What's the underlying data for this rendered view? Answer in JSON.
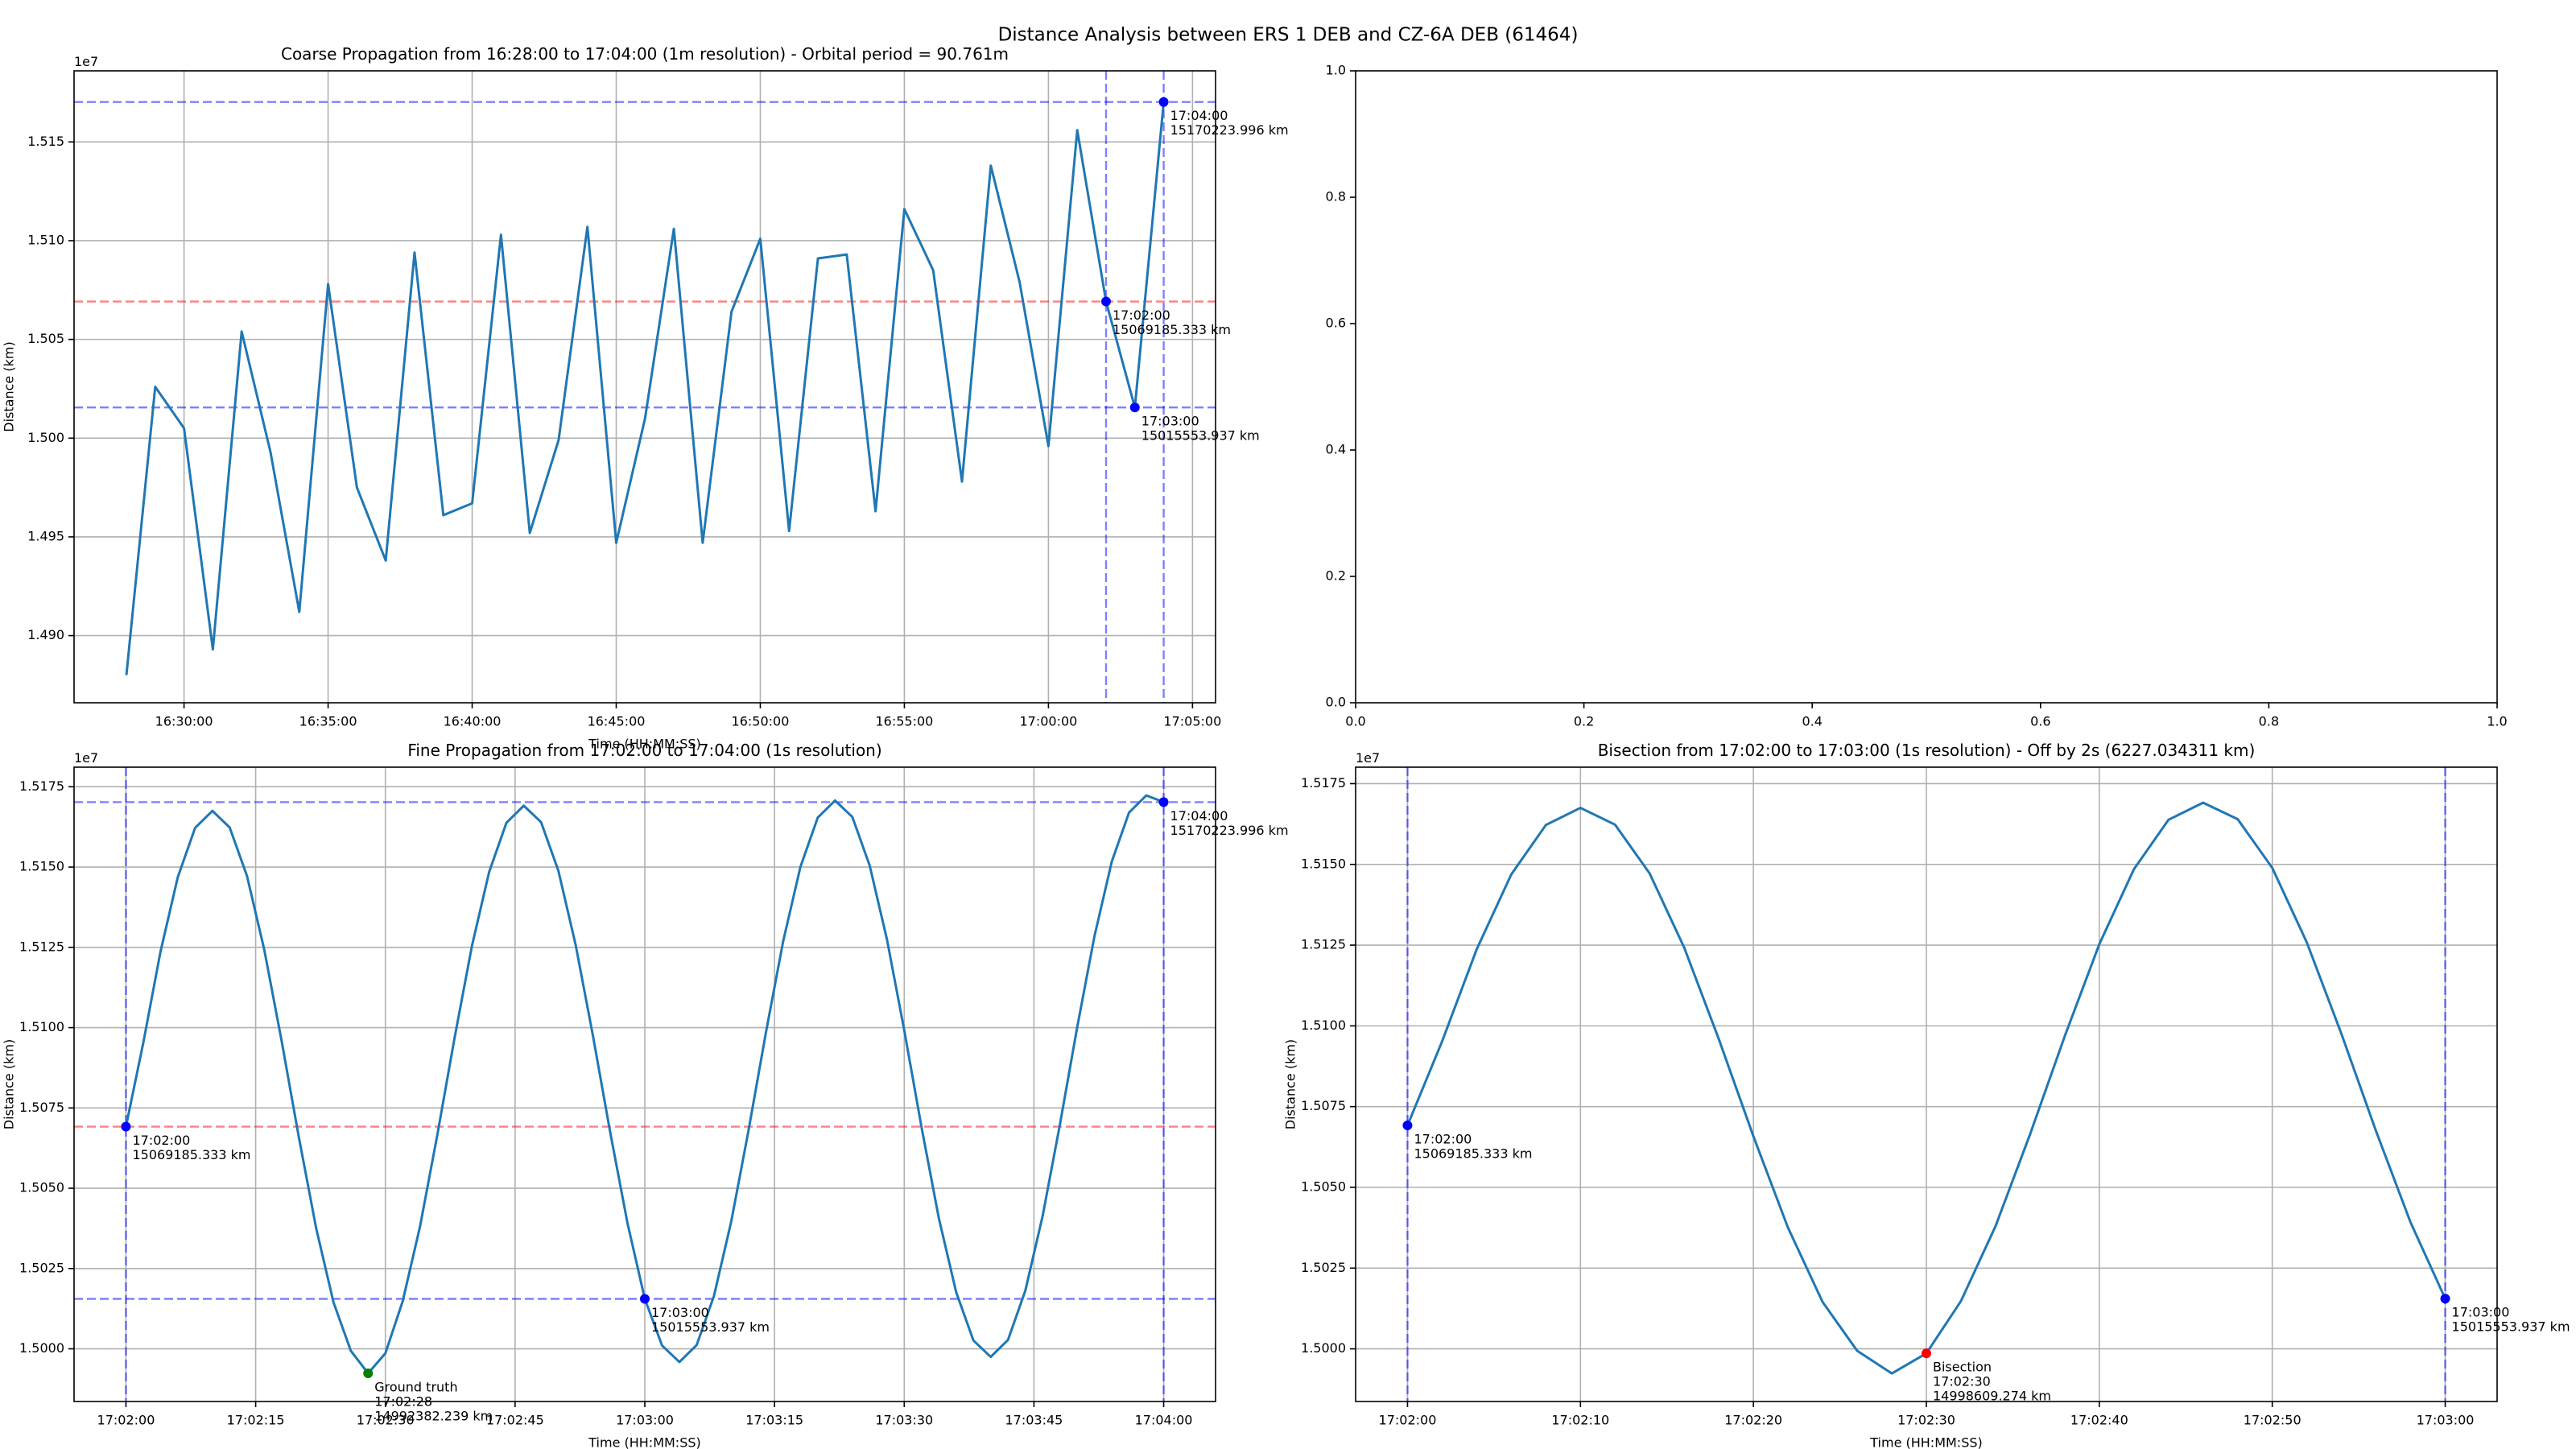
{
  "title": "Distance Analysis between ERS 1 DEB and CZ-6A DEB (61464)",
  "chart_data": [
    {
      "type": "line",
      "title": "Coarse Propagation from 16:28:00 to 17:04:00 (1m resolution) - Orbital period = 90.761m",
      "x_label": "Time (HH:MM:SS)",
      "y_label": "Distance (km)",
      "y_offset_label": "1e7",
      "grid": true,
      "x": [
        "16:28:00",
        "16:29:00",
        "16:30:00",
        "16:31:00",
        "16:32:00",
        "16:33:00",
        "16:34:00",
        "16:35:00",
        "16:36:00",
        "16:37:00",
        "16:38:00",
        "16:39:00",
        "16:40:00",
        "16:41:00",
        "16:42:00",
        "16:43:00",
        "16:44:00",
        "16:45:00",
        "16:46:00",
        "16:47:00",
        "16:48:00",
        "16:49:00",
        "16:50:00",
        "16:51:00",
        "16:52:00",
        "16:53:00",
        "16:54:00",
        "16:55:00",
        "16:56:00",
        "16:57:00",
        "16:58:00",
        "16:59:00",
        "17:00:00",
        "17:01:00",
        "17:02:00",
        "17:03:00",
        "17:04:00"
      ],
      "series": [
        {
          "color": "#1f77b4",
          "values": [
            14880000,
            15026000,
            15005000,
            14893000,
            15054000,
            14993000,
            14912000,
            15078000,
            14975000,
            14938000,
            15094000,
            14961000,
            14967000,
            15103000,
            14952000,
            14999000,
            15107000,
            14947000,
            15010000,
            15106000,
            14947000,
            15064000,
            15101000,
            14953000,
            15091000,
            15093000,
            14963000,
            15116000,
            15085000,
            14978000,
            15138000,
            15079000,
            14996000,
            15156000,
            15069185.333,
            15015553.937,
            15170223.996
          ]
        }
      ],
      "xlim": [
        "16:26:11",
        "17:05:48"
      ],
      "xticks": [
        "16:30:00",
        "16:35:00",
        "16:40:00",
        "16:45:00",
        "16:50:00",
        "16:55:00",
        "17:00:00",
        "17:05:00"
      ],
      "ylim": [
        14866000,
        15186000
      ],
      "yticks": [
        {
          "value": 14900000,
          "label": "1.490"
        },
        {
          "value": 14950000,
          "label": "1.495"
        },
        {
          "value": 15000000,
          "label": "1.500"
        },
        {
          "value": 15050000,
          "label": "1.505"
        },
        {
          "value": 15100000,
          "label": "1.510"
        },
        {
          "value": 15150000,
          "label": "1.515"
        }
      ],
      "hlines": [
        {
          "y": 15170223.996,
          "color": "#0000ff"
        },
        {
          "y": 15069185.333,
          "color": "#ff0000"
        },
        {
          "y": 15015553.937,
          "color": "#0000ff"
        }
      ],
      "vlines": [
        {
          "x": "17:02:00",
          "color": "#0000ff"
        },
        {
          "x": "17:04:00",
          "color": "#0000ff"
        }
      ],
      "annotations": [
        {
          "x": "17:02:00",
          "y": 15069185.333,
          "color": "#0000ff",
          "text": [
            "17:02:00",
            "15069185.333 km"
          ]
        },
        {
          "x": "17:03:00",
          "y": 15015553.937,
          "color": "#0000ff",
          "text": [
            "17:03:00",
            "15015553.937 km"
          ]
        },
        {
          "x": "17:04:00",
          "y": 15170223.996,
          "color": "#0000ff",
          "text": [
            "17:04:00",
            "15170223.996 km"
          ]
        }
      ]
    },
    {
      "type": "line",
      "grid": false,
      "xlim": [
        0,
        1
      ],
      "ylim": [
        0,
        1
      ],
      "xticks": [
        {
          "value": 0,
          "label": "0.0"
        },
        0.2,
        0.4,
        0.6,
        0.8,
        {
          "value": 1,
          "label": "1.0"
        }
      ],
      "yticks": [
        {
          "value": 0,
          "label": "0.0"
        },
        0.2,
        0.4,
        0.6,
        0.8,
        {
          "value": 1,
          "label": "1.0"
        }
      ]
    },
    {
      "type": "line",
      "title": "Fine Propagation from 17:02:00 to 17:04:00 (1s resolution)",
      "x_label": "Time (HH:MM:SS)",
      "y_label": "Distance (km)",
      "y_offset_label": "1e7",
      "grid": true,
      "x": [
        "17:02:00",
        "17:02:02",
        "17:02:04",
        "17:02:06",
        "17:02:08",
        "17:02:10",
        "17:02:12",
        "17:02:14",
        "17:02:16",
        "17:02:18",
        "17:02:20",
        "17:02:22",
        "17:02:24",
        "17:02:26",
        "17:02:28",
        "17:02:30",
        "17:02:32",
        "17:02:34",
        "17:02:36",
        "17:02:38",
        "17:02:40",
        "17:02:42",
        "17:02:44",
        "17:02:46",
        "17:02:48",
        "17:02:50",
        "17:02:52",
        "17:02:54",
        "17:02:56",
        "17:02:58",
        "17:03:00",
        "17:03:02",
        "17:03:04",
        "17:03:06",
        "17:03:08",
        "17:03:10",
        "17:03:12",
        "17:03:14",
        "17:03:16",
        "17:03:18",
        "17:03:20",
        "17:03:22",
        "17:03:24",
        "17:03:26",
        "17:03:28",
        "17:03:30",
        "17:03:32",
        "17:03:34",
        "17:03:36",
        "17:03:38",
        "17:03:40",
        "17:03:42",
        "17:03:44",
        "17:03:46",
        "17:03:48",
        "17:03:50",
        "17:03:52",
        "17:03:54",
        "17:03:56",
        "17:03:58",
        "17:04:00"
      ],
      "series": [
        {
          "color": "#1f77b4",
          "values": [
            15069185.333,
            15095200,
            15123700,
            15146900,
            15162200,
            15167500,
            15162300,
            15147200,
            15124200,
            15095900,
            15065800,
            15037500,
            15014500,
            14999400,
            14992382.239,
            14998609.274,
            15014800,
            15038000,
            15066500,
            15096800,
            15125300,
            15148500,
            15163800,
            15169100,
            15164000,
            15148900,
            15125800,
            15097500,
            15067400,
            15039100,
            15015553.937,
            15001000,
            14995900,
            15001200,
            15016500,
            15039700,
            15068100,
            15098400,
            15126900,
            15150100,
            15165400,
            15170700,
            15165600,
            15150500,
            15127500,
            15099200,
            15069000,
            15040700,
            15017700,
            15002600,
            14997500,
            15002800,
            15018100,
            15041300,
            15069800,
            15100100,
            15128500,
            15151700,
            15167000,
            15172300,
            15170223.996
          ]
        }
      ],
      "xlim": [
        "17:01:54",
        "17:04:06"
      ],
      "xticks": [
        "17:02:00",
        "17:02:15",
        "17:02:30",
        "17:02:45",
        "17:03:00",
        "17:03:15",
        "17:03:30",
        "17:03:45",
        "17:04:00"
      ],
      "ylim": [
        14983600,
        15181100
      ],
      "yticks": [
        {
          "value": 15000000,
          "label": "1.5000"
        },
        {
          "value": 15025000,
          "label": "1.5025"
        },
        {
          "value": 15050000,
          "label": "1.5050"
        },
        {
          "value": 15075000,
          "label": "1.5075"
        },
        {
          "value": 15100000,
          "label": "1.5100"
        },
        {
          "value": 15125000,
          "label": "1.5125"
        },
        {
          "value": 15150000,
          "label": "1.5150"
        },
        {
          "value": 15175000,
          "label": "1.5175"
        }
      ],
      "hlines": [
        {
          "y": 15170223.996,
          "color": "#0000ff"
        },
        {
          "y": 15069185.333,
          "color": "#ff0000"
        },
        {
          "y": 15015553.937,
          "color": "#0000ff"
        }
      ],
      "vlines": [
        {
          "x": "17:02:00",
          "color": "#0000ff"
        },
        {
          "x": "17:04:00",
          "color": "#0000ff"
        }
      ],
      "annotations": [
        {
          "x": "17:02:00",
          "y": 15069185.333,
          "color": "#0000ff",
          "text": [
            "17:02:00",
            "15069185.333 km"
          ]
        },
        {
          "x": "17:03:00",
          "y": 15015553.937,
          "color": "#0000ff",
          "text": [
            "17:03:00",
            "15015553.937 km"
          ]
        },
        {
          "x": "17:04:00",
          "y": 15170223.996,
          "color": "#0000ff",
          "text": [
            "17:04:00",
            "15170223.996 km"
          ]
        },
        {
          "x": "17:02:28",
          "y": 14992382.239,
          "color": "#008000",
          "text": [
            "Ground truth",
            "17:02:28",
            "14992382.239 km"
          ]
        }
      ]
    },
    {
      "type": "line",
      "title": "Bisection from 17:02:00 to 17:03:00 (1s resolution) - Off by 2s (6227.034311 km)",
      "x_label": "Time (HH:MM:SS)",
      "y_label": "Distance (km)",
      "y_offset_label": "1e7",
      "grid": true,
      "x": [
        "17:02:00",
        "17:02:02",
        "17:02:04",
        "17:02:06",
        "17:02:08",
        "17:02:10",
        "17:02:12",
        "17:02:14",
        "17:02:16",
        "17:02:18",
        "17:02:20",
        "17:02:22",
        "17:02:24",
        "17:02:26",
        "17:02:28",
        "17:02:30",
        "17:02:32",
        "17:02:34",
        "17:02:36",
        "17:02:38",
        "17:02:40",
        "17:02:42",
        "17:02:44",
        "17:02:46",
        "17:02:48",
        "17:02:50",
        "17:02:52",
        "17:02:54",
        "17:02:56",
        "17:02:58",
        "17:03:00"
      ],
      "series": [
        {
          "color": "#1f77b4",
          "values": [
            15069185.333,
            15095200,
            15123700,
            15146900,
            15162200,
            15167500,
            15162300,
            15147200,
            15124200,
            15095900,
            15065800,
            15037500,
            15014500,
            14999400,
            14992382.239,
            14998609.274,
            15014800,
            15038000,
            15066500,
            15096800,
            15125300,
            15148500,
            15163800,
            15169100,
            15164000,
            15148900,
            15125800,
            15097500,
            15067400,
            15039100,
            15015553.937
          ]
        }
      ],
      "xlim": [
        "17:01:57",
        "17:03:03"
      ],
      "xticks": [
        "17:02:00",
        "17:02:10",
        "17:02:20",
        "17:02:30",
        "17:02:40",
        "17:02:50",
        "17:03:00"
      ],
      "ylim": [
        14983700,
        15180100
      ],
      "yticks": [
        {
          "value": 15000000,
          "label": "1.5000"
        },
        {
          "value": 15025000,
          "label": "1.5025"
        },
        {
          "value": 15050000,
          "label": "1.5050"
        },
        {
          "value": 15075000,
          "label": "1.5075"
        },
        {
          "value": 15100000,
          "label": "1.5100"
        },
        {
          "value": 15125000,
          "label": "1.5125"
        },
        {
          "value": 15150000,
          "label": "1.5150"
        },
        {
          "value": 15175000,
          "label": "1.5175"
        }
      ],
      "vlines": [
        {
          "x": "17:02:00",
          "color": "#0000ff"
        },
        {
          "x": "17:03:00",
          "color": "#0000ff"
        }
      ],
      "annotations": [
        {
          "x": "17:02:00",
          "y": 15069185.333,
          "color": "#0000ff",
          "text": [
            "17:02:00",
            "15069185.333 km"
          ]
        },
        {
          "x": "17:03:00",
          "y": 15015553.937,
          "color": "#0000ff",
          "text": [
            "17:03:00",
            "15015553.937 km"
          ]
        },
        {
          "x": "17:02:30",
          "y": 14998609.274,
          "color": "#ff0000",
          "text": [
            "Bisection",
            "17:02:30",
            "14998609.274 km"
          ]
        }
      ]
    }
  ]
}
